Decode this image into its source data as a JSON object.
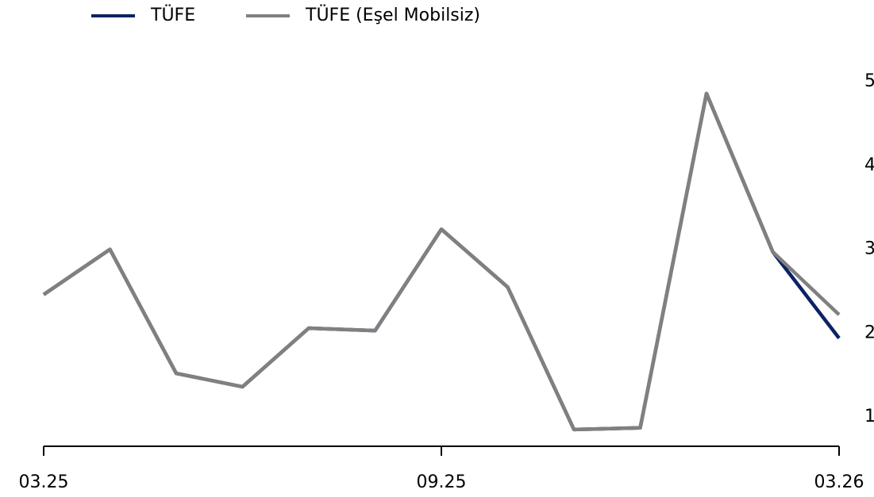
{
  "chart_data": {
    "type": "line",
    "categories": [
      "03.25",
      null,
      null,
      null,
      null,
      null,
      "09.25",
      null,
      null,
      null,
      null,
      null,
      "03.26"
    ],
    "series": [
      {
        "name": "TÜFE",
        "color": "#0b2265",
        "values": [
          2.46,
          3.0,
          1.52,
          1.36,
          2.06,
          2.03,
          3.24,
          2.55,
          0.85,
          0.87,
          4.86,
          2.97,
          1.94
        ]
      },
      {
        "name": "TÜFE (Eşel Mobilsiz)",
        "color": "#808080",
        "values": [
          2.46,
          3.0,
          1.52,
          1.36,
          2.06,
          2.03,
          3.24,
          2.55,
          0.85,
          0.87,
          4.86,
          2.97,
          2.22
        ]
      }
    ],
    "ylim": [
      0.65,
      5.1
    ],
    "yticks": [
      1,
      2,
      3,
      4,
      5
    ],
    "legend": "top-left"
  }
}
